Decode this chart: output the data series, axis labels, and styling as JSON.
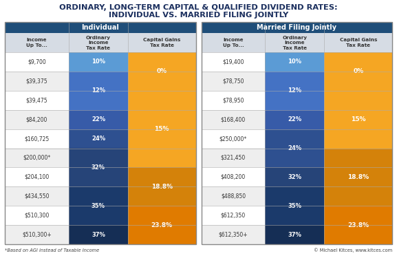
{
  "title_line1": "ORDINARY, LONG-TERM CAPITAL & QUALIFIED DIVIDEND RATES:",
  "title_line2": "INDIVIDUAL VS. MARRIED FILING JOINTLY",
  "bg_color": "#FFFFFF",
  "title_color": "#1B2F5E",
  "header_bg": "#1F4E79",
  "col_header_bg": "#D6DCE4",
  "orange_light": "#F5A623",
  "orange_dark": "#E07B00",
  "individual_header": "Individual",
  "married_header": "Married Filing Jointly",
  "col_headers": [
    "Income\nUp To...",
    "Ordinary\nIncome\nTax Rate",
    "Capital Gains\nTax Rate"
  ],
  "individual_rows": [
    {
      "income": "$9,700"
    },
    {
      "income": "$39,375"
    },
    {
      "income": "$39,475"
    },
    {
      "income": "$84,200"
    },
    {
      "income": "$160,725"
    },
    {
      "income": "$200,000*"
    },
    {
      "income": "$204,100"
    },
    {
      "income": "$434,550"
    },
    {
      "income": "$510,300"
    },
    {
      "income": "$510,300+"
    }
  ],
  "married_rows": [
    {
      "income": "$19,400"
    },
    {
      "income": "$78,750"
    },
    {
      "income": "$78,950"
    },
    {
      "income": "$168,400"
    },
    {
      "income": "$250,000*"
    },
    {
      "income": "$321,450"
    },
    {
      "income": "$408,200"
    },
    {
      "income": "$488,850"
    },
    {
      "income": "$612,350"
    },
    {
      "income": "$612,350+"
    }
  ],
  "ind_ord_groups": [
    {
      "label": "10%",
      "rows": [
        0,
        0
      ],
      "bg": "#5B9BD5"
    },
    {
      "label": "12%",
      "rows": [
        1,
        2
      ],
      "bg": "#4472C4"
    },
    {
      "label": "22%",
      "rows": [
        3,
        3
      ],
      "bg": "#375BA8"
    },
    {
      "label": "24%",
      "rows": [
        4,
        4
      ],
      "bg": "#2E5090"
    },
    {
      "label": "32%",
      "rows": [
        5,
        6
      ],
      "bg": "#264478"
    },
    {
      "label": "35%",
      "rows": [
        7,
        8
      ],
      "bg": "#1B3A6B"
    },
    {
      "label": "37%",
      "rows": [
        9,
        9
      ],
      "bg": "#152E55"
    }
  ],
  "mar_ord_groups": [
    {
      "label": "10%",
      "rows": [
        0,
        0
      ],
      "bg": "#5B9BD5"
    },
    {
      "label": "12%",
      "rows": [
        1,
        2
      ],
      "bg": "#4472C4"
    },
    {
      "label": "22%",
      "rows": [
        3,
        3
      ],
      "bg": "#375BA8"
    },
    {
      "label": "24%",
      "rows": [
        4,
        5
      ],
      "bg": "#2E5090"
    },
    {
      "label": "32%",
      "rows": [
        6,
        6
      ],
      "bg": "#264478"
    },
    {
      "label": "35%",
      "rows": [
        7,
        8
      ],
      "bg": "#1B3A6B"
    },
    {
      "label": "37%",
      "rows": [
        9,
        9
      ],
      "bg": "#152E55"
    }
  ],
  "ind_cg_groups": [
    {
      "label": "0%",
      "rows": [
        0,
        1
      ],
      "bg": "#F5A623"
    },
    {
      "label": "15%",
      "rows": [
        2,
        5
      ],
      "bg": "#F5A623"
    },
    {
      "label": "18.8%",
      "rows": [
        6,
        7
      ],
      "bg": "#D4820A"
    },
    {
      "label": "23.8%",
      "rows": [
        8,
        9
      ],
      "bg": "#E07B00"
    }
  ],
  "mar_cg_groups": [
    {
      "label": "0%",
      "rows": [
        0,
        1
      ],
      "bg": "#F5A623"
    },
    {
      "label": "15%",
      "rows": [
        2,
        4
      ],
      "bg": "#F5A623"
    },
    {
      "label": "18.8%",
      "rows": [
        5,
        7
      ],
      "bg": "#D4820A"
    },
    {
      "label": "23.8%",
      "rows": [
        8,
        9
      ],
      "bg": "#E07B00"
    }
  ],
  "footnote": "*Based on AGI instead of Taxable Income",
  "credit": "© Michael Kitces, www.kitces.com"
}
